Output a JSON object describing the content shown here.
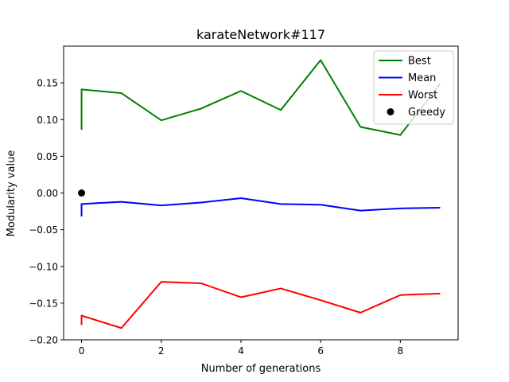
{
  "chart_data": {
    "type": "line",
    "title": "karateNetwork#117",
    "xlabel": "Number of generations",
    "ylabel": "Modularity value",
    "xlim": [
      -0.45,
      9.45
    ],
    "ylim": [
      -0.2,
      0.2
    ],
    "xticks": [
      0,
      2,
      4,
      6,
      8
    ],
    "xtick_labels": [
      "0",
      "2",
      "4",
      "6",
      "8"
    ],
    "yticks": [
      -0.2,
      -0.15,
      -0.1,
      -0.05,
      0.0,
      0.05,
      0.1,
      0.15
    ],
    "ytick_labels": [
      "−0.20",
      "−0.15",
      "−0.10",
      "−0.05",
      "0.00",
      "0.05",
      "0.10",
      "0.15"
    ],
    "grid": false,
    "legend_position": "top-right",
    "series": [
      {
        "name": "Best",
        "color": "#008000",
        "marker": "line",
        "points": [
          [
            0,
            0.086
          ],
          [
            0,
            0.141
          ],
          [
            1,
            0.136
          ],
          [
            2,
            0.099
          ],
          [
            3,
            0.115
          ],
          [
            4,
            0.139
          ],
          [
            5,
            0.113
          ],
          [
            6,
            0.181
          ],
          [
            7,
            0.09
          ],
          [
            8,
            0.079
          ],
          [
            9,
            0.149
          ]
        ]
      },
      {
        "name": "Mean",
        "color": "#0000ff",
        "marker": "line",
        "points": [
          [
            0,
            -0.032
          ],
          [
            0,
            -0.015
          ],
          [
            1,
            -0.012
          ],
          [
            2,
            -0.017
          ],
          [
            3,
            -0.013
          ],
          [
            4,
            -0.007
          ],
          [
            5,
            -0.015
          ],
          [
            6,
            -0.016
          ],
          [
            7,
            -0.024
          ],
          [
            8,
            -0.021
          ],
          [
            9,
            -0.02
          ]
        ]
      },
      {
        "name": "Worst",
        "color": "#ff0000",
        "marker": "line",
        "points": [
          [
            0,
            -0.18
          ],
          [
            0,
            -0.167
          ],
          [
            1,
            -0.184
          ],
          [
            2,
            -0.121
          ],
          [
            3,
            -0.123
          ],
          [
            4,
            -0.142
          ],
          [
            5,
            -0.13
          ],
          [
            6,
            -0.146
          ],
          [
            7,
            -0.163
          ],
          [
            8,
            -0.139
          ],
          [
            9,
            -0.137
          ]
        ]
      },
      {
        "name": "Greedy",
        "color": "#000000",
        "marker": "dot",
        "points": [
          [
            0,
            0.0
          ]
        ]
      }
    ]
  }
}
